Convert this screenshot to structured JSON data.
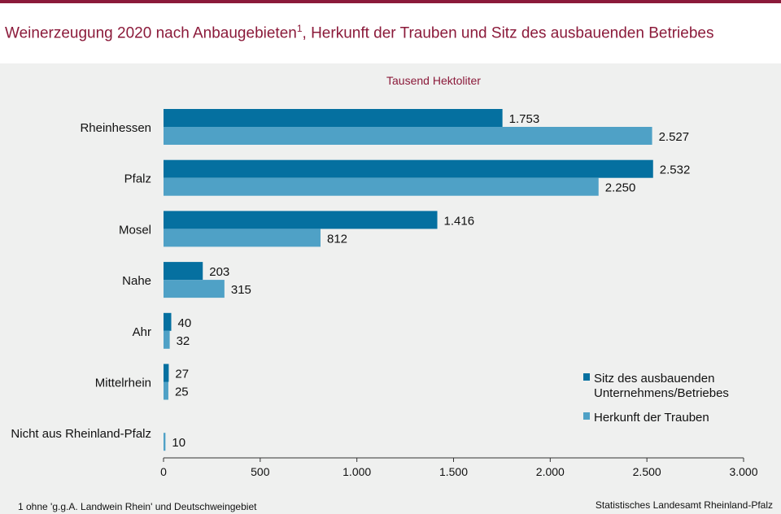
{
  "title_main": "Weinerzeugung 2020 nach Anbaugebieten",
  "title_sup": "1",
  "title_rest": ", Herkunft der Trauben und Sitz des ausbauenden Betriebes",
  "footnote": "1 ohne 'g.g.A. Landwein Rhein' und Deutschweingebiet",
  "source": "Statistisches Landesamt Rheinland-Pfalz",
  "colors": {
    "series1": "#0570a0",
    "series2": "#4fa1c6",
    "accent": "#8b1a3a"
  },
  "chart_data": {
    "type": "bar",
    "orientation": "horizontal",
    "title": "Weinerzeugung 2020 nach Anbaugebieten, Herkunft der Trauben und Sitz des ausbauenden Betriebes",
    "unit_label": "Tausend  Hektoliter",
    "categories": [
      "Rheinhessen",
      "Pfalz",
      "Mosel",
      "Nahe",
      "Ahr",
      "Mittelrhein",
      "Nicht aus Rheinland-Pfalz"
    ],
    "series": [
      {
        "name": "Sitz des ausbauenden Unternehmens/Betriebes",
        "legend_lines": [
          "Sitz des ausbauenden",
          "Unternehmens/Betriebes"
        ],
        "values": [
          1753,
          2532,
          1416,
          203,
          40,
          27,
          null
        ],
        "labels": [
          "1.753",
          "2.532",
          "1.416",
          "203",
          "40",
          "27",
          ""
        ]
      },
      {
        "name": "Herkunft der Trauben",
        "legend_lines": [
          "Herkunft der Trauben"
        ],
        "values": [
          2527,
          2250,
          812,
          315,
          32,
          25,
          10
        ],
        "labels": [
          "2.527",
          "2.250",
          "812",
          "315",
          "32",
          "25",
          "10"
        ]
      }
    ],
    "xlim": [
      0,
      3000
    ],
    "xticks": [
      0,
      500,
      1000,
      1500,
      2000,
      2500,
      3000
    ],
    "xtick_labels": [
      "0",
      "500",
      "1.000",
      "1.500",
      "2.000",
      "2.500",
      "3.000"
    ],
    "legend_position": "bottom-right",
    "grid": false
  }
}
